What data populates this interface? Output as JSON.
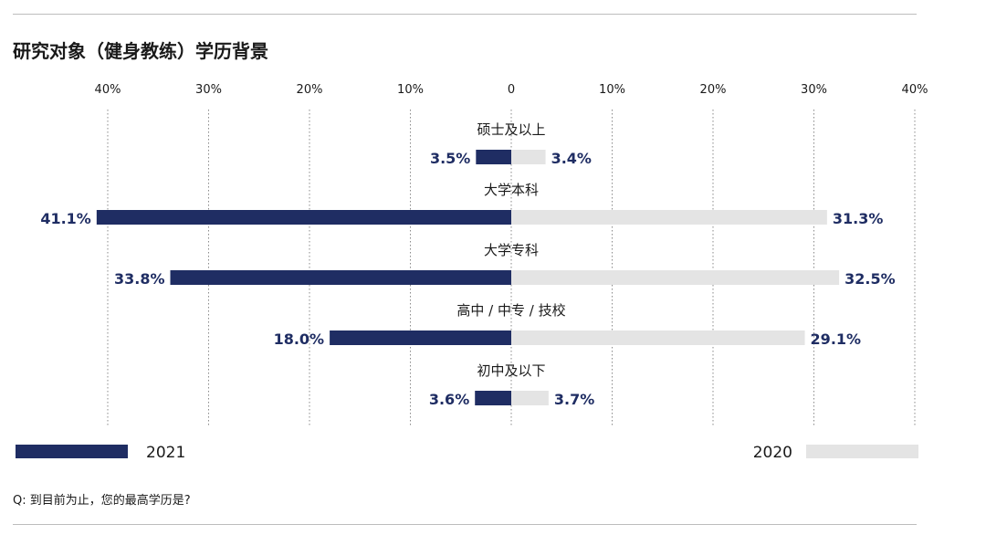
{
  "title": "研究对象（健身教练）学历背景",
  "footnote": "Q: 到目前为止，您的最高学历是?",
  "colors": {
    "dark": "#1f2d63",
    "light": "#e4e4e4",
    "label": "#1f2d63",
    "grid": "#8a8a8a"
  },
  "chart_data": {
    "type": "bar",
    "orientation": "horizontal-diverging",
    "categories": [
      "硕士及以上",
      "大学本科",
      "大学专科",
      "高中 / 中专 / 技校",
      "初中及以下"
    ],
    "series": [
      {
        "name": "2021",
        "side": "left",
        "color": "#1f2d63",
        "values": [
          3.5,
          41.1,
          33.8,
          18.0,
          3.6
        ],
        "labels": [
          "3.5%",
          "41.1%",
          "33.8%",
          "18.0%",
          "3.6%"
        ]
      },
      {
        "name": "2020",
        "side": "right",
        "color": "#e4e4e4",
        "values": [
          3.4,
          31.3,
          32.5,
          29.1,
          3.7
        ],
        "labels": [
          "3.4%",
          "31.3%",
          "32.5%",
          "29.1%",
          "3.7%"
        ]
      }
    ],
    "ticks": [
      "40%",
      "30%",
      "20%",
      "10%",
      "0",
      "10%",
      "20%",
      "30%",
      "40%"
    ],
    "xlim": [
      -40,
      40
    ],
    "grid": true,
    "legend": [
      {
        "label": "2021",
        "placement": "bottom-left"
      },
      {
        "label": "2020",
        "placement": "bottom-right"
      }
    ]
  }
}
